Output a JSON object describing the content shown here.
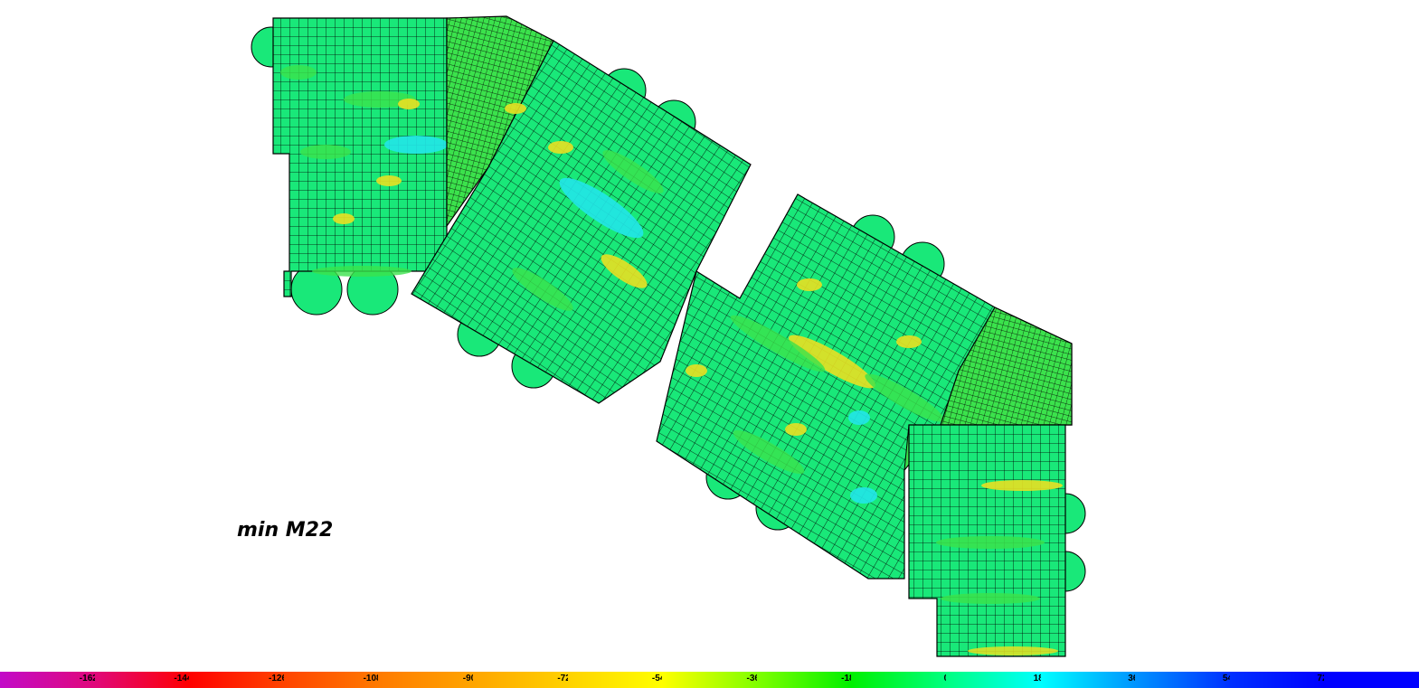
{
  "caption": "min M22",
  "legend": {
    "ticks": [
      "-162.",
      "-144.",
      "-126.",
      "-108.",
      "-90.",
      "-72.",
      "-54.",
      "-36.",
      "-18.",
      "0.",
      "18.",
      "36.",
      "54.",
      "72."
    ],
    "colors": [
      "#c20ac8",
      "#e0087a",
      "#ff0000",
      "#ff4400",
      "#ff7a00",
      "#ffa500",
      "#ffd200",
      "#ffff00",
      "#80ff00",
      "#00f000",
      "#00ff80",
      "#00ffff",
      "#0094ff",
      "#0030ff",
      "#0000ff"
    ]
  },
  "fill_colors": {
    "base": "#19e879",
    "green": "#3be24c",
    "cyan": "#22e6e8",
    "yellow": "#e8e022",
    "mesh": "#000000"
  }
}
